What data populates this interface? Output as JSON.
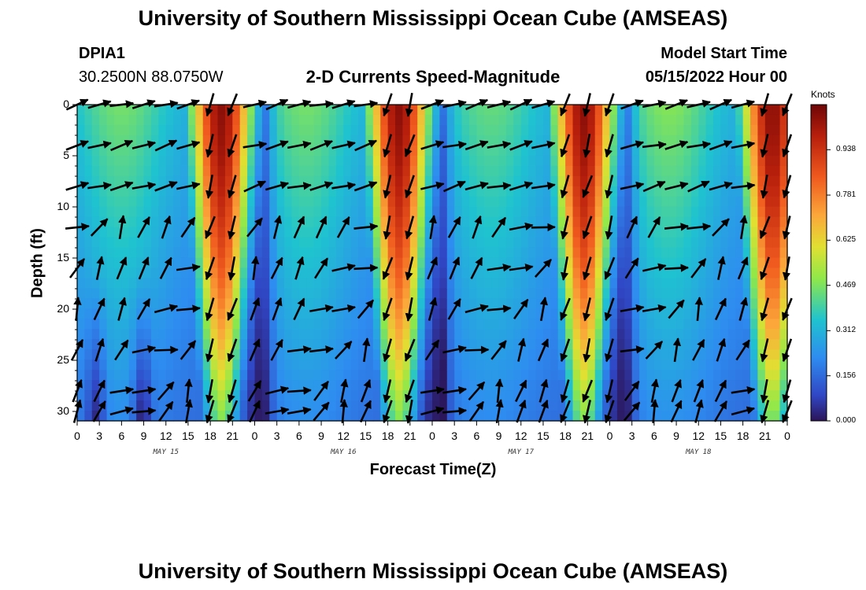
{
  "title": "University of Southern Mississippi Ocean Cube (AMSEAS)",
  "footer_title": "University of Southern Mississippi Ocean Cube (AMSEAS)",
  "station": {
    "id": "DPIA1",
    "location": "30.2500N  88.0750W"
  },
  "model_start": {
    "label": "Model Start Time",
    "value": "05/15/2022 Hour 00"
  },
  "chart_data": {
    "type": "heatmap",
    "title": "2-D Currents Speed-Magnitude",
    "xlabel": "Forecast Time(Z)",
    "ylabel": "Depth (ft)",
    "x_range_hours": [
      0,
      96
    ],
    "ylim": [
      0,
      31
    ],
    "y_ticks": [
      "0",
      "5",
      "10",
      "15",
      "20",
      "25",
      "30"
    ],
    "x_tick_labels": [
      "0",
      "3",
      "6",
      "9",
      "12",
      "15",
      "18",
      "21",
      "0",
      "3",
      "6",
      "9",
      "12",
      "15",
      "18",
      "21",
      "0",
      "3",
      "6",
      "9",
      "12",
      "15",
      "18",
      "21",
      "0",
      "3",
      "6",
      "9",
      "12",
      "15",
      "18",
      "21",
      "0"
    ],
    "date_labels": [
      {
        "hour": 12,
        "label": "MAY 15"
      },
      {
        "hour": 36,
        "label": "MAY 16"
      },
      {
        "hour": 60,
        "label": "MAY 17"
      },
      {
        "hour": 84,
        "label": "MAY 18"
      }
    ],
    "colorbar": {
      "unit": "Knots",
      "min": 0,
      "max": 1.094,
      "tick_labels": [
        "0.938",
        "0.781",
        "0.625",
        "0.469",
        "0.312",
        "0.156",
        "0.000"
      ]
    },
    "speed_peaks_knots": [
      {
        "center_hour": 19.5,
        "max": 1.05
      },
      {
        "center_hour": 43.5,
        "max": 1.05
      },
      {
        "center_hour": 68.5,
        "max": 1.05
      },
      {
        "center_hour": 94.0,
        "max": 1.05
      }
    ],
    "arrow_depths_ft": [
      0,
      4,
      8,
      12,
      16,
      20,
      24,
      28,
      30
    ],
    "arrow_direction_pattern": "ebb (southward) during peak-speed periods, flood (north/north-east) between peaks",
    "colors": {
      "low": "#2b1558",
      "high": "#7f0a06"
    }
  }
}
